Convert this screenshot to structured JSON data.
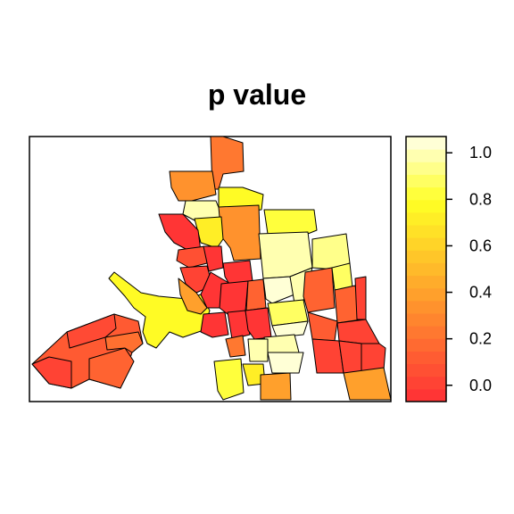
{
  "title": "p value",
  "legend": {
    "ticks": [
      "0.0",
      "0.2",
      "0.4",
      "0.6",
      "0.8",
      "1.0"
    ],
    "tick_values": [
      0.0,
      0.2,
      0.4,
      0.6,
      0.8,
      1.0
    ],
    "range": [
      -0.07,
      1.07
    ],
    "palette": [
      "#FF3535",
      "#FF4334",
      "#FF5033",
      "#FF5C32",
      "#FF6A31",
      "#FF7830",
      "#FF852E",
      "#FF922D",
      "#FFA02C",
      "#FFAC2B",
      "#FFBA2A",
      "#FFC629",
      "#FFD428",
      "#FFE127",
      "#FFEE26",
      "#FFFB25",
      "#FFFF3C",
      "#FFFF62",
      "#FFFF8A",
      "#FFFFB0",
      "#FFFFD6"
    ]
  }
}
